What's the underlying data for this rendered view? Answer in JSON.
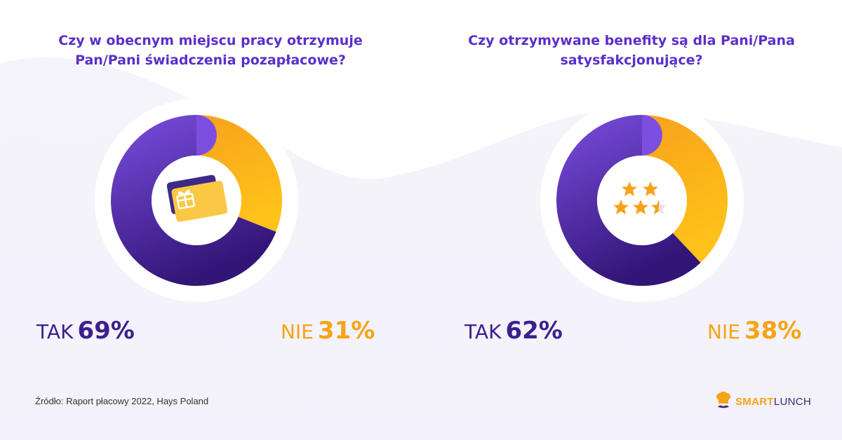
{
  "chart_data": [
    {
      "type": "pie",
      "variant": "donut",
      "title": "Czy w obecnym miejscu pracy otrzymuje Pan/Pani świadczenia pozapłacowe?",
      "title_lines": [
        "Czy w obecnym miejscu pracy otrzymuje",
        "Pan/Pani świadczenia pozapłacowe?"
      ],
      "center_icon": "gift-card-icon",
      "slices": [
        {
          "label": "TAK",
          "value": 69,
          "display": "69%",
          "color": "#4b24a8"
        },
        {
          "label": "NIE",
          "value": 31,
          "display": "31%",
          "color": "#f9a825"
        }
      ]
    },
    {
      "type": "pie",
      "variant": "donut",
      "title": "Czy otrzymywane benefity są dla Pani/Pana satysfakcjonujące?",
      "title_lines": [
        "Czy otrzymywane benefity są dla Pani/Pana",
        "satysfakcjonujące?"
      ],
      "center_icon": "star-rating-icon",
      "slices": [
        {
          "label": "TAK",
          "value": 62,
          "display": "62%",
          "color": "#4b24a8"
        },
        {
          "label": "NIE",
          "value": 38,
          "display": "38%",
          "color": "#f9a825"
        }
      ]
    }
  ],
  "footer": {
    "source": "Źródło: Raport płacowy 2022, Hays Poland"
  },
  "brand": {
    "smart": "SMART",
    "lunch": "LUNCH",
    "icon": "chef-hat-mustache-icon"
  },
  "colors": {
    "title": "#5a2fc9",
    "yes_text": "#3c1f8e",
    "no_text": "#f5a416",
    "purple_light": "#7b4ee0",
    "purple_dark": "#321577",
    "orange_light": "#f7a21b",
    "orange_dark": "#ffc21a"
  }
}
